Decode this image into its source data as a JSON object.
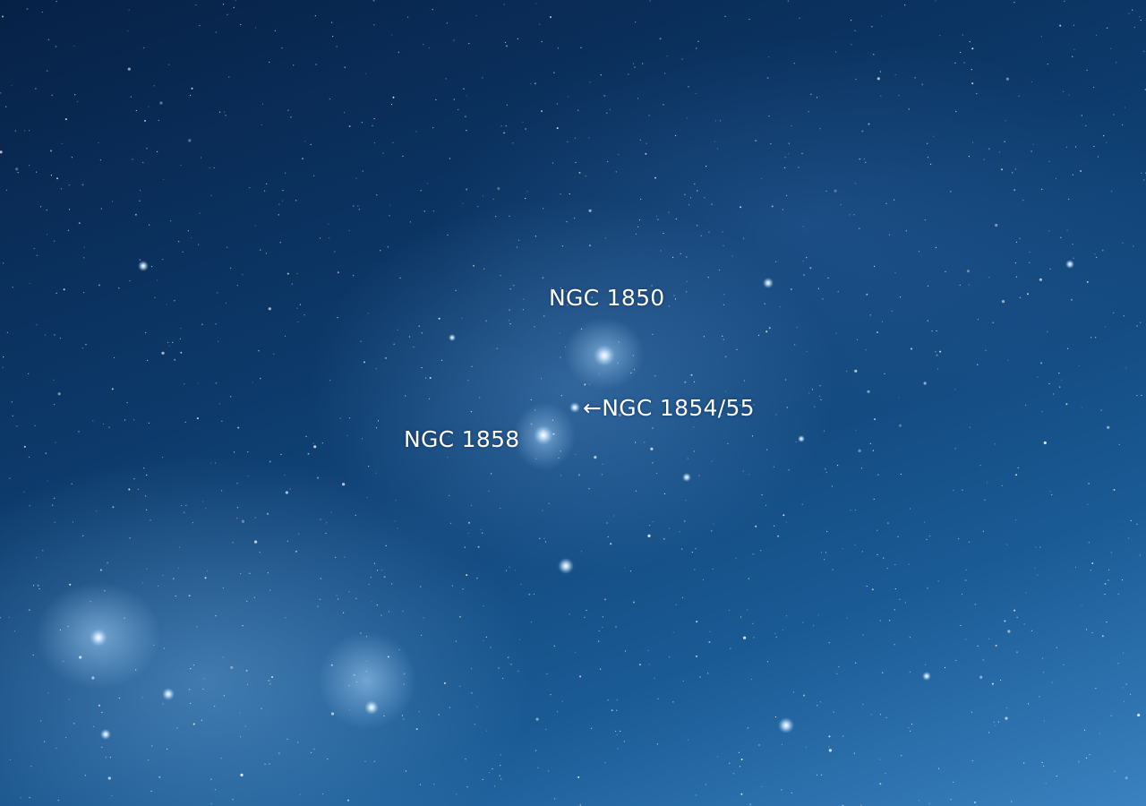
{
  "labels": {
    "ngc1850": "NGC 1850",
    "ngc1854": "←NGC 1854/55",
    "ngc1858": "NGC 1858"
  },
  "colors": {
    "star": "#ffffff",
    "nebula": "#8fc6f2",
    "sky_dark": "#072146",
    "sky_light": "#3a82c0"
  }
}
